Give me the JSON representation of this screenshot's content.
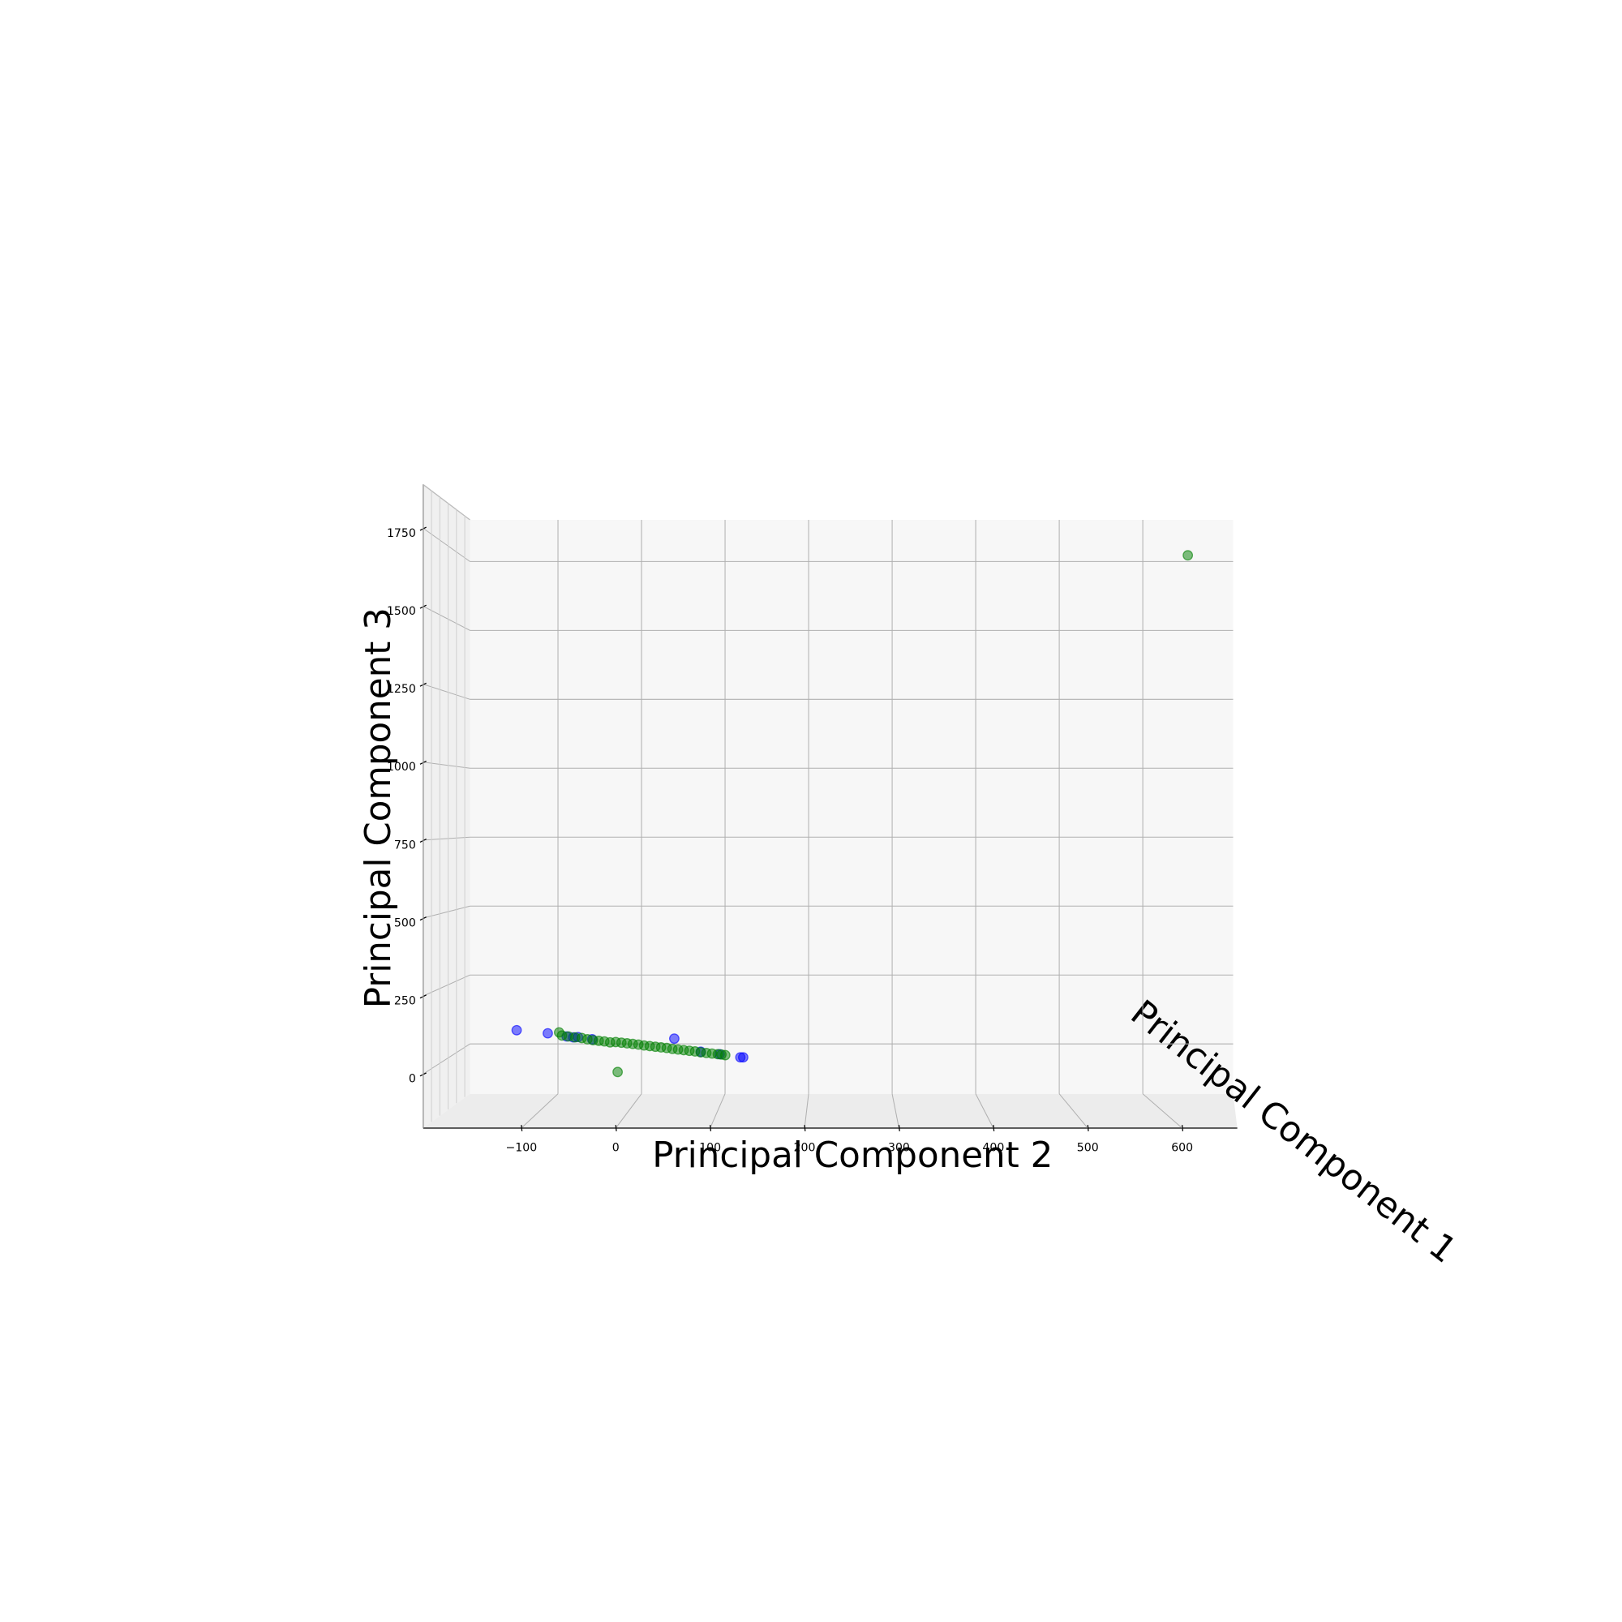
{
  "chart_data": {
    "type": "scatter3d",
    "xlabel": "Principal Component 2",
    "ylabel": "Principal Component 3",
    "zlabel": "Principal Component 1",
    "xlim": [
      -204,
      654
    ],
    "ylim": [
      -157,
      1907
    ],
    "xticks": [
      {
        "value": -100,
        "label": "−100"
      },
      0,
      100,
      200,
      300,
      400,
      500,
      600
    ],
    "yticks": [
      0,
      250,
      500,
      750,
      1000,
      1250,
      1500,
      1750
    ],
    "grid": true,
    "series": [
      {
        "color": "#0000ff",
        "x": [
          -105,
          -72,
          -52,
          -45,
          -40,
          -25,
          62,
          90,
          110,
          132,
          135
        ],
        "values": [
          157,
          147,
          137,
          134,
          135,
          128,
          130,
          88,
          80,
          70,
          70
        ]
      },
      {
        "color": "#008000",
        "x": [
          -60,
          -57,
          -50,
          -43,
          -36,
          -30,
          -24,
          -18,
          -12,
          -6,
          0,
          6,
          12,
          18,
          24,
          30,
          36,
          42,
          48,
          54,
          60,
          66,
          72,
          78,
          84,
          90,
          96,
          102,
          108,
          112,
          116,
          2,
          606
        ],
        "values": [
          150,
          140,
          137,
          134,
          132,
          128,
          125,
          123,
          121,
          118,
          119,
          117,
          115,
          113,
          111,
          108,
          106,
          104,
          102,
          100,
          97,
          95,
          93,
          91,
          89,
          86,
          84,
          82,
          80,
          79,
          77,
          23,
          1680
        ]
      }
    ]
  }
}
